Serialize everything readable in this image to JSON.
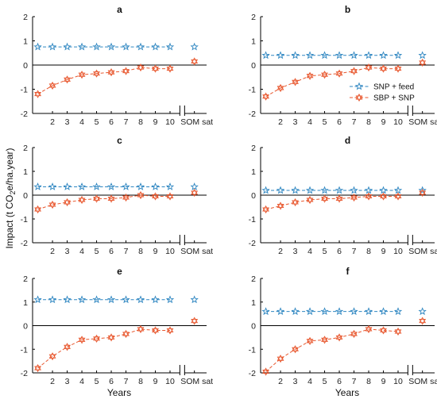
{
  "figure": {
    "ylabel": "Impact (t CO",
    "ylabel_sub": "2",
    "ylabel_tail": "e/ha.year)",
    "xlabel": "Years"
  },
  "legend": {
    "entries": [
      "SNP + feed",
      "SBP + SNP"
    ]
  },
  "colors": {
    "feed": "#2e86c1",
    "snp": "#e8572e",
    "axis": "#000000"
  },
  "chart_data": [
    {
      "type": "line",
      "title": "a",
      "x_labels": [
        "2",
        "3",
        "4",
        "5",
        "6",
        "7",
        "8",
        "9",
        "10",
        "SOM sat"
      ],
      "ylim": [
        -2,
        2
      ],
      "y_ticks": [
        "2",
        "1",
        "0",
        "-1",
        "-2"
      ],
      "series": [
        {
          "name": "SNP + feed",
          "marker": "star",
          "values": [
            0.75,
            0.75,
            0.75,
            0.75,
            0.75,
            0.75,
            0.75,
            0.75,
            0.75,
            0.75
          ],
          "sat": 0.75
        },
        {
          "name": "SBP + SNP",
          "marker": "hexagram",
          "values": [
            -1.2,
            -0.85,
            -0.6,
            -0.4,
            -0.35,
            -0.3,
            -0.25,
            -0.1,
            -0.15,
            -0.15
          ],
          "sat": 0.15
        }
      ]
    },
    {
      "type": "line",
      "title": "b",
      "x_labels": [
        "2",
        "3",
        "4",
        "5",
        "6",
        "7",
        "8",
        "9",
        "10",
        "SOM sat"
      ],
      "ylim": [
        -2,
        2
      ],
      "y_ticks": [
        "2",
        "1",
        "0",
        "-1",
        "-2"
      ],
      "series": [
        {
          "name": "SNP + feed",
          "marker": "star",
          "values": [
            0.4,
            0.4,
            0.4,
            0.4,
            0.4,
            0.4,
            0.4,
            0.4,
            0.4,
            0.4
          ],
          "sat": 0.4
        },
        {
          "name": "SBP + SNP",
          "marker": "hexagram",
          "values": [
            -1.3,
            -0.95,
            -0.7,
            -0.45,
            -0.4,
            -0.35,
            -0.25,
            -0.1,
            -0.15,
            -0.15
          ],
          "sat": 0.1
        }
      ]
    },
    {
      "type": "line",
      "title": "c",
      "x_labels": [
        "2",
        "3",
        "4",
        "5",
        "6",
        "7",
        "8",
        "9",
        "10",
        "SOM sat"
      ],
      "ylim": [
        -2,
        2
      ],
      "y_ticks": [
        "2",
        "1",
        "0",
        "-1",
        "-2"
      ],
      "series": [
        {
          "name": "SNP + feed",
          "marker": "star",
          "values": [
            0.35,
            0.35,
            0.35,
            0.35,
            0.35,
            0.35,
            0.35,
            0.35,
            0.35,
            0.35
          ],
          "sat": 0.35
        },
        {
          "name": "SBP + SNP",
          "marker": "hexagram",
          "values": [
            -0.6,
            -0.4,
            -0.3,
            -0.2,
            -0.15,
            -0.15,
            -0.1,
            0.0,
            -0.05,
            -0.05
          ],
          "sat": 0.1
        }
      ]
    },
    {
      "type": "line",
      "title": "d",
      "x_labels": [
        "2",
        "3",
        "4",
        "5",
        "6",
        "7",
        "8",
        "9",
        "10",
        "SOM sat"
      ],
      "ylim": [
        -2,
        2
      ],
      "y_ticks": [
        "2",
        "1",
        "0",
        "-1",
        "-2"
      ],
      "series": [
        {
          "name": "SNP + feed",
          "marker": "star",
          "values": [
            0.2,
            0.2,
            0.2,
            0.2,
            0.2,
            0.2,
            0.2,
            0.2,
            0.2,
            0.2
          ],
          "sat": 0.2
        },
        {
          "name": "SBP + SNP",
          "marker": "hexagram",
          "values": [
            -0.6,
            -0.45,
            -0.3,
            -0.2,
            -0.15,
            -0.15,
            -0.1,
            -0.05,
            -0.05,
            -0.05
          ],
          "sat": 0.1
        }
      ]
    },
    {
      "type": "line",
      "title": "e",
      "x_labels": [
        "2",
        "3",
        "4",
        "5",
        "6",
        "7",
        "8",
        "9",
        "10",
        "SOM sat"
      ],
      "ylim": [
        -2,
        2
      ],
      "y_ticks": [
        "2",
        "1",
        "0",
        "-1",
        "-2"
      ],
      "series": [
        {
          "name": "SNP + feed",
          "marker": "star",
          "values": [
            1.1,
            1.1,
            1.1,
            1.1,
            1.1,
            1.1,
            1.1,
            1.1,
            1.1,
            1.1
          ],
          "sat": 1.1
        },
        {
          "name": "SBP + SNP",
          "marker": "hexagram",
          "values": [
            -1.8,
            -1.3,
            -0.9,
            -0.6,
            -0.55,
            -0.5,
            -0.35,
            -0.15,
            -0.2,
            -0.2
          ],
          "sat": 0.2
        }
      ]
    },
    {
      "type": "line",
      "title": "f",
      "x_labels": [
        "2",
        "3",
        "4",
        "5",
        "6",
        "7",
        "8",
        "9",
        "10",
        "SOM sat"
      ],
      "ylim": [
        -2,
        2
      ],
      "y_ticks": [
        "2",
        "1",
        "0",
        "-1",
        "-2"
      ],
      "series": [
        {
          "name": "SNP + feed",
          "marker": "star",
          "values": [
            0.6,
            0.6,
            0.6,
            0.6,
            0.6,
            0.6,
            0.6,
            0.6,
            0.6,
            0.6
          ],
          "sat": 0.6
        },
        {
          "name": "SBP + SNP",
          "marker": "hexagram",
          "values": [
            -1.95,
            -1.4,
            -1.0,
            -0.65,
            -0.6,
            -0.5,
            -0.35,
            -0.15,
            -0.2,
            -0.25
          ],
          "sat": 0.2
        }
      ]
    }
  ]
}
